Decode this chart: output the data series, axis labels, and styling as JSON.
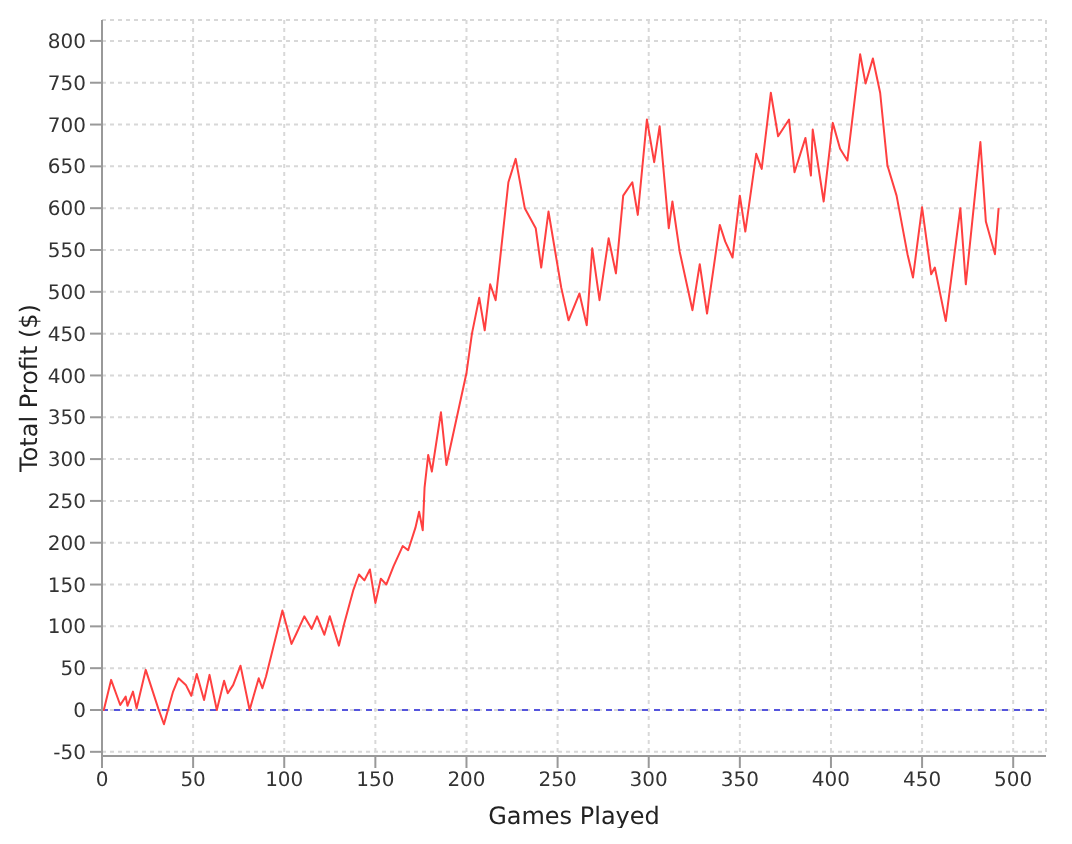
{
  "chart_data": {
    "type": "line",
    "xlabel": "Games Played",
    "ylabel": "Total Profit ($)",
    "x": [
      0,
      1,
      5,
      10,
      13,
      14,
      17,
      19,
      24,
      31,
      34,
      39,
      42,
      46,
      49,
      52,
      56,
      59,
      63,
      67,
      69,
      72,
      76,
      81,
      86,
      88,
      90,
      99,
      104,
      107,
      111,
      115,
      118,
      122,
      125,
      130,
      133,
      138,
      141,
      144,
      147,
      150,
      153,
      156,
      160,
      165,
      168,
      172,
      174,
      176,
      177,
      179,
      181,
      186,
      189,
      193,
      200,
      203,
      207,
      210,
      213,
      216,
      223,
      227,
      232,
      238,
      241,
      245,
      252,
      256,
      262,
      266,
      269,
      273,
      278,
      282,
      286,
      291,
      294,
      299,
      303,
      306,
      311,
      313,
      317,
      324,
      328,
      332,
      339,
      342,
      346,
      350,
      353,
      359,
      362,
      367,
      371,
      377,
      380,
      386,
      389,
      390,
      396,
      401,
      405,
      409,
      416,
      419,
      423,
      427,
      431,
      436,
      442,
      445,
      450,
      455,
      457,
      463,
      471,
      474,
      482,
      485,
      490,
      492
    ],
    "series": [
      {
        "color": "#ff4040",
        "values": [
          0,
          0,
          36,
          6,
          16,
          5,
          22,
          2,
          48,
          1,
          -17,
          22,
          38,
          30,
          17,
          43,
          12,
          42,
          0,
          35,
          20,
          30,
          53,
          0,
          38,
          26,
          40,
          119,
          79,
          93,
          112,
          97,
          112,
          90,
          112,
          77,
          104,
          144,
          162,
          155,
          168,
          128,
          157,
          150,
          172,
          196,
          191,
          218,
          237,
          215,
          266,
          305,
          285,
          356,
          293,
          333,
          403,
          450,
          493,
          454,
          509,
          490,
          631,
          659,
          600,
          576,
          529,
          596,
          505,
          466,
          498,
          460,
          552,
          490,
          564,
          522,
          615,
          631,
          592,
          706,
          655,
          698,
          576,
          608,
          548,
          478,
          533,
          474,
          580,
          560,
          541,
          615,
          572,
          665,
          647,
          738,
          686,
          706,
          643,
          684,
          639,
          694,
          608,
          702,
          671,
          657,
          784,
          749,
          779,
          738,
          651,
          615,
          545,
          517,
          601,
          521,
          529,
          465,
          600,
          509,
          679,
          584,
          545,
          600
        ]
      }
    ],
    "xlim": [
      0,
      518
    ],
    "xticks": [
      0,
      50,
      100,
      150,
      200,
      250,
      300,
      350,
      400,
      450,
      500
    ],
    "ylim": [
      -55,
      825
    ],
    "yticks": [
      -50,
      0,
      50,
      100,
      150,
      200,
      250,
      300,
      350,
      400,
      450,
      500,
      550,
      600,
      650,
      700,
      750,
      800
    ],
    "grid": true,
    "marker": "none",
    "line_style": "solid",
    "legend": false,
    "ref_lines": [
      {
        "axis": "y",
        "value": 0,
        "color": "#5555dd",
        "line_style": "dashed"
      }
    ]
  }
}
